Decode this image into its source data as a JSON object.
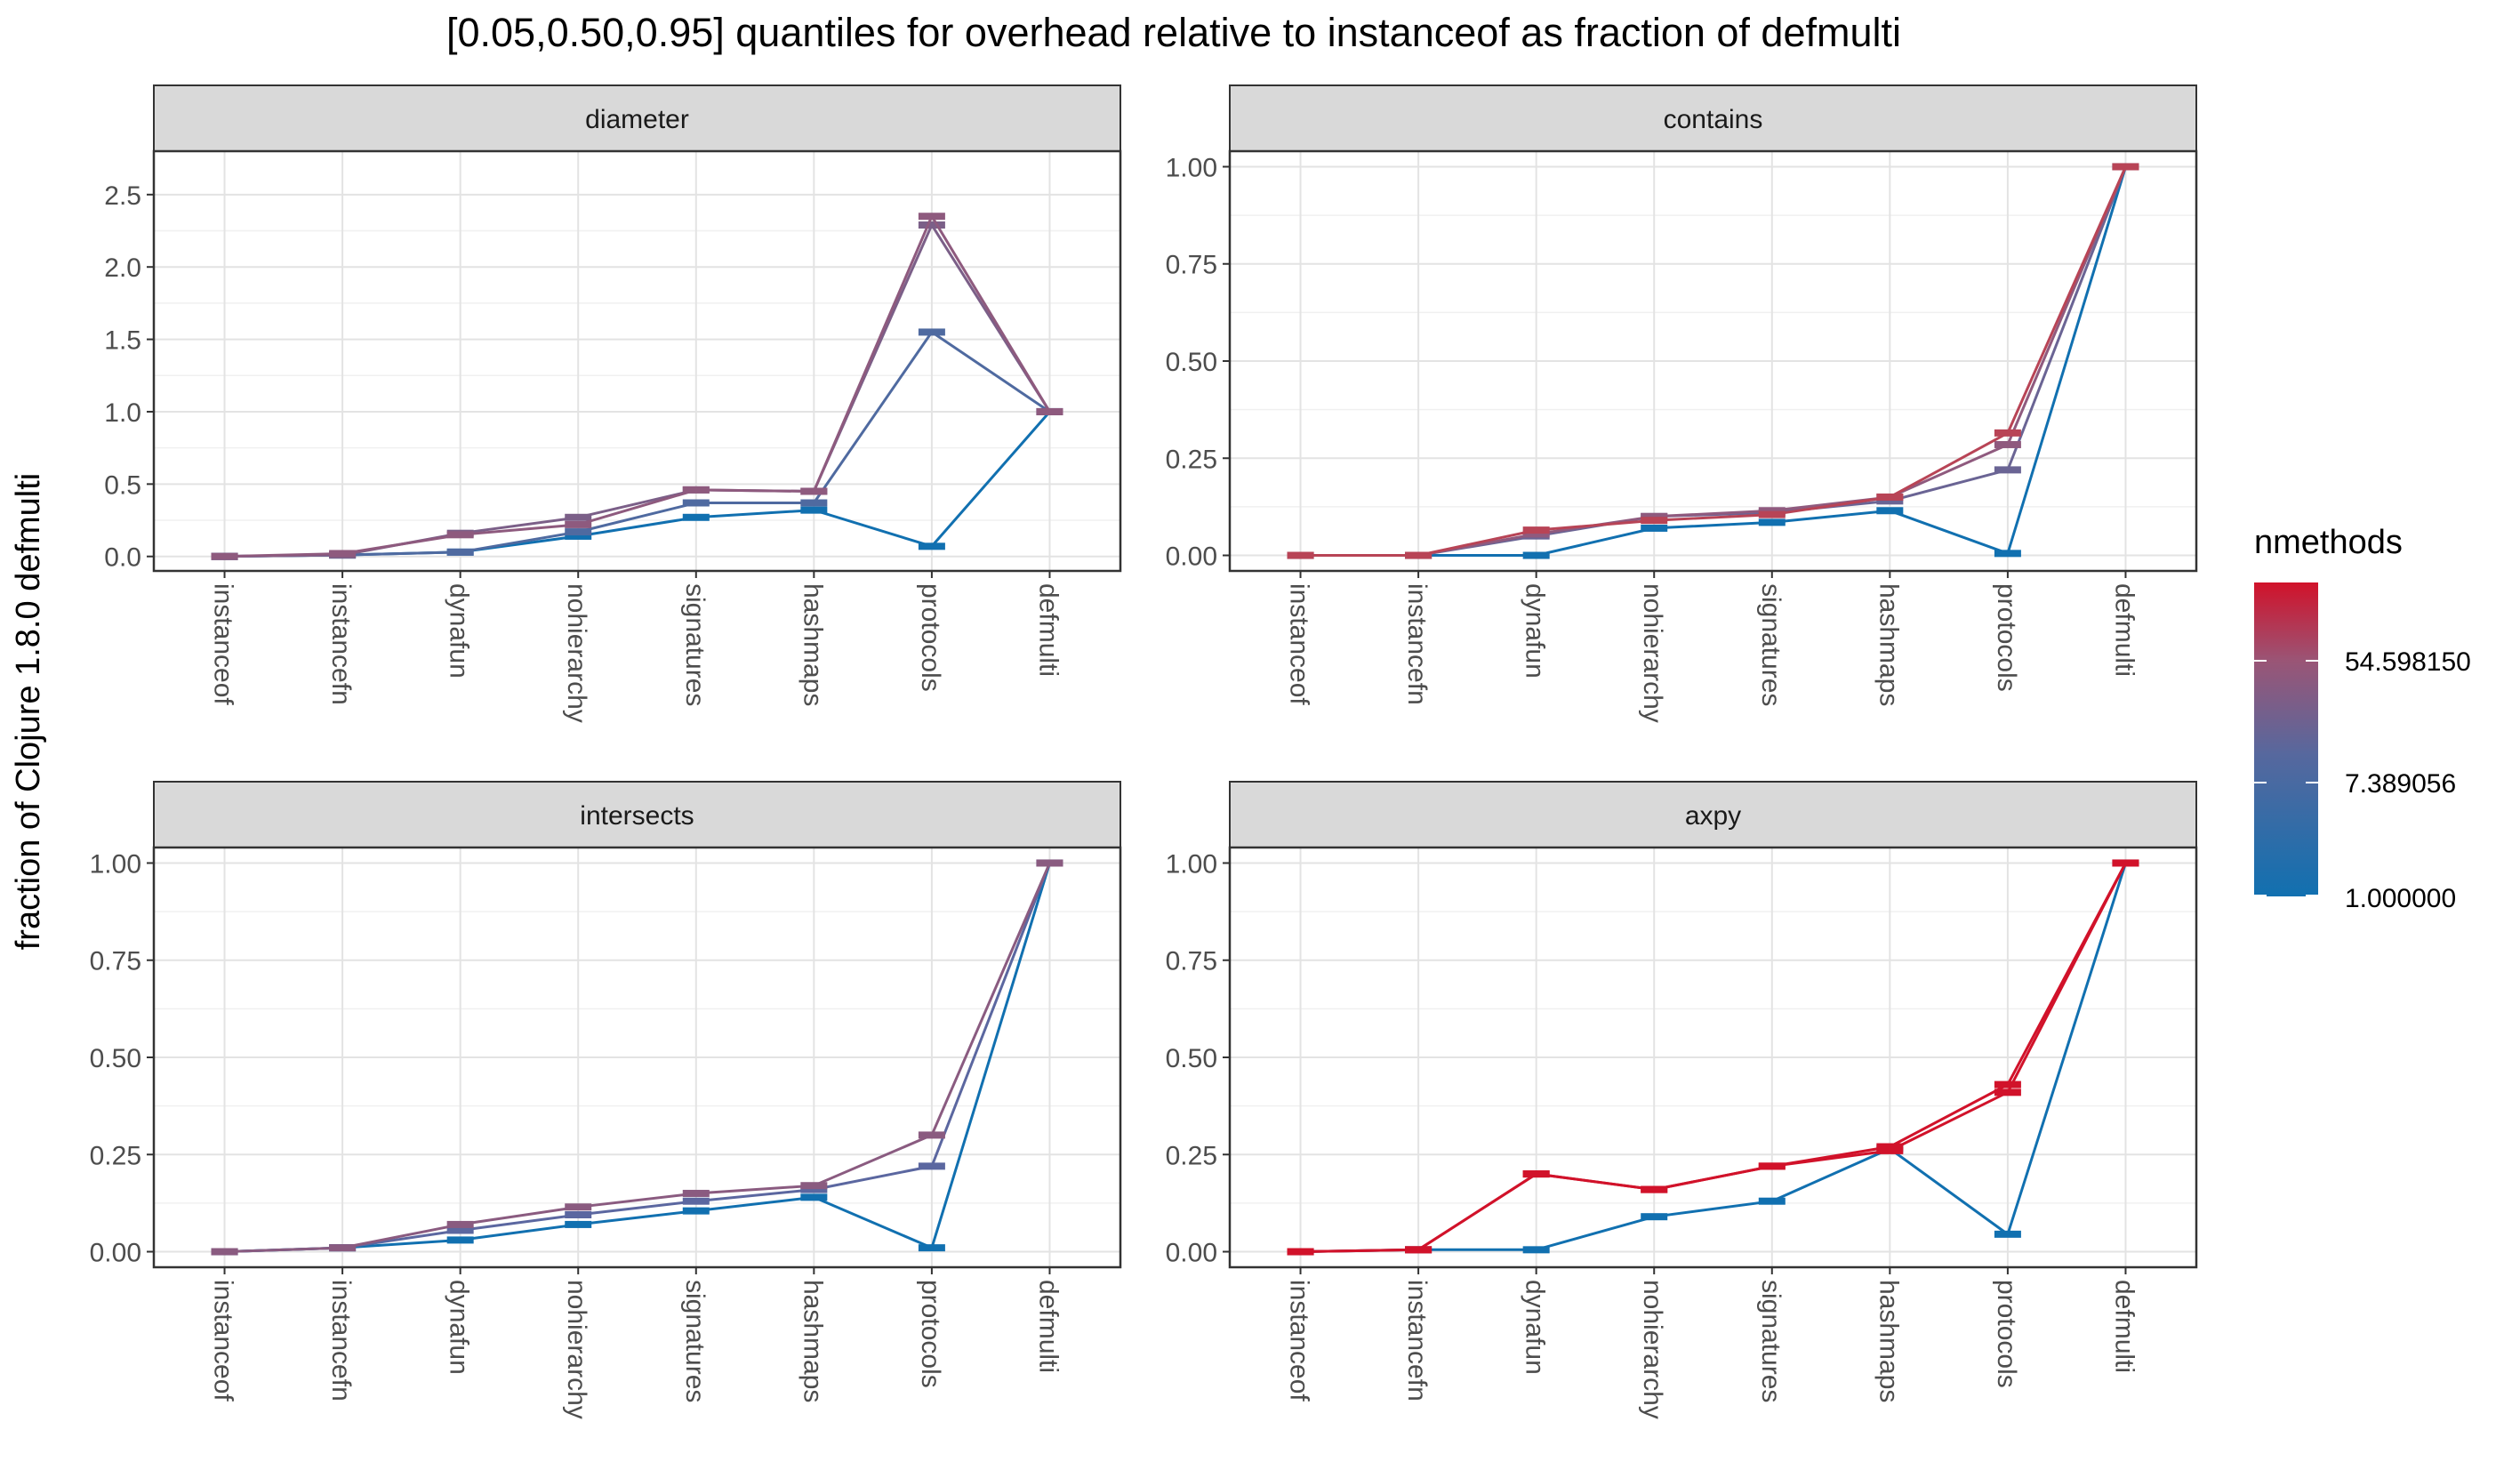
{
  "title": "[0.05,0.50,0.95] quantiles for overhead relative to instanceof as fraction of defmulti",
  "ylabel": "fraction of Clojure 1.8.0 defmulti",
  "colors": {
    "low": "#1170b0",
    "high": "#d1122a"
  },
  "legend": {
    "title": "nmethods",
    "labels": [
      "54.598150",
      "7.389056",
      "1.000000"
    ]
  },
  "chart_data": [
    {
      "type": "line",
      "title": "diameter",
      "categories": [
        "instanceof",
        "instancefn",
        "dynafun",
        "nohierarchy",
        "signatures",
        "hashmaps",
        "protocols",
        "defmulti"
      ],
      "ylim": [
        -0.1,
        2.8
      ],
      "yticks": [
        0.0,
        0.5,
        1.0,
        1.5,
        2.0,
        2.5
      ],
      "ytick_labels": [
        "0.0",
        "0.5",
        "1.0",
        "1.5",
        "2.0",
        "2.5"
      ],
      "grid": true,
      "series": [
        {
          "color": "#1170b0",
          "values": [
            0.0,
            0.01,
            0.03,
            0.14,
            0.27,
            0.32,
            0.07,
            1.0
          ]
        },
        {
          "color": "#4f6aa0",
          "values": [
            0.0,
            0.01,
            0.03,
            0.17,
            0.37,
            0.37,
            1.55,
            1.0
          ]
        },
        {
          "color": "#7b5f88",
          "values": [
            0.0,
            0.01,
            0.16,
            0.27,
            0.46,
            0.45,
            2.29,
            1.0
          ]
        },
        {
          "color": "#8e5a7e",
          "values": [
            0.0,
            0.02,
            0.15,
            0.22,
            0.46,
            0.45,
            2.35,
            1.0
          ]
        }
      ]
    },
    {
      "type": "line",
      "title": "contains",
      "categories": [
        "instanceof",
        "instancefn",
        "dynafun",
        "nohierarchy",
        "signatures",
        "hashmaps",
        "protocols",
        "defmulti"
      ],
      "ylim": [
        -0.04,
        1.04
      ],
      "yticks": [
        0.0,
        0.25,
        0.5,
        0.75,
        1.0
      ],
      "ytick_labels": [
        "0.00",
        "0.25",
        "0.50",
        "0.75",
        "1.00"
      ],
      "grid": true,
      "series": [
        {
          "color": "#1170b0",
          "values": [
            0.0,
            0.0,
            0.0,
            0.07,
            0.085,
            0.115,
            0.005,
            1.0
          ]
        },
        {
          "color": "#6a6494",
          "values": [
            0.0,
            0.0,
            0.05,
            0.1,
            0.11,
            0.14,
            0.22,
            1.0
          ]
        },
        {
          "color": "#8f5a7e",
          "values": [
            0.0,
            0.0,
            0.055,
            0.1,
            0.115,
            0.15,
            0.285,
            1.0
          ]
        },
        {
          "color": "#b84456",
          "values": [
            0.0,
            0.0,
            0.065,
            0.09,
            0.105,
            0.15,
            0.315,
            1.0
          ]
        }
      ]
    },
    {
      "type": "line",
      "title": "intersects",
      "categories": [
        "instanceof",
        "instancefn",
        "dynafun",
        "nohierarchy",
        "signatures",
        "hashmaps",
        "protocols",
        "defmulti"
      ],
      "ylim": [
        -0.04,
        1.04
      ],
      "yticks": [
        0.0,
        0.25,
        0.5,
        0.75,
        1.0
      ],
      "ytick_labels": [
        "0.00",
        "0.25",
        "0.50",
        "0.75",
        "1.00"
      ],
      "grid": true,
      "series": [
        {
          "color": "#1170b0",
          "values": [
            0.0,
            0.01,
            0.03,
            0.07,
            0.105,
            0.14,
            0.01,
            1.0
          ]
        },
        {
          "color": "#5b67a0",
          "values": [
            0.0,
            0.01,
            0.055,
            0.095,
            0.13,
            0.16,
            0.22,
            1.0
          ]
        },
        {
          "color": "#8a5b80",
          "values": [
            0.0,
            0.01,
            0.07,
            0.115,
            0.15,
            0.17,
            0.3,
            1.0
          ]
        }
      ]
    },
    {
      "type": "line",
      "title": "axpy",
      "categories": [
        "instanceof",
        "instancefn",
        "dynafun",
        "nohierarchy",
        "signatures",
        "hashmaps",
        "protocols",
        "defmulti"
      ],
      "ylim": [
        -0.04,
        1.04
      ],
      "yticks": [
        0.0,
        0.25,
        0.5,
        0.75,
        1.0
      ],
      "ytick_labels": [
        "0.00",
        "0.25",
        "0.50",
        "0.75",
        "1.00"
      ],
      "grid": true,
      "series": [
        {
          "color": "#1170b0",
          "values": [
            0.0,
            0.005,
            0.005,
            0.09,
            0.13,
            0.265,
            0.045,
            1.0
          ]
        },
        {
          "color": "#d1122a",
          "values": [
            0.0,
            0.005,
            0.2,
            0.16,
            0.22,
            0.26,
            0.41,
            1.0
          ]
        },
        {
          "color": "#d1122a",
          "values": [
            0.0,
            0.005,
            0.2,
            0.16,
            0.22,
            0.27,
            0.43,
            1.0
          ]
        }
      ]
    }
  ]
}
